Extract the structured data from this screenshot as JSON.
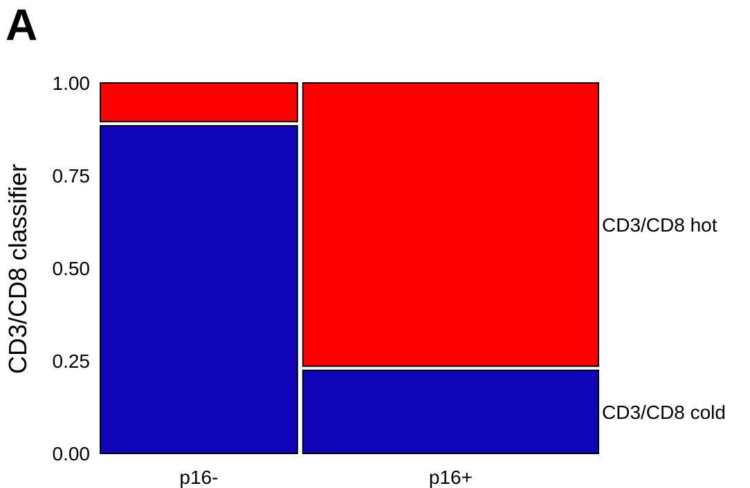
{
  "panel_label": "A",
  "chart_data": {
    "type": "mosaic",
    "title": "",
    "ylabel": "CD3/CD8 classifier",
    "xlabel": "",
    "ylim": [
      0,
      1
    ],
    "y_ticks": [
      "0.00",
      "0.25",
      "0.50",
      "0.75",
      "1.00"
    ],
    "y_tick_values": [
      0,
      0.25,
      0.5,
      0.75,
      1.0
    ],
    "categories": [
      "p16-",
      "p16+"
    ],
    "category_widths": [
      0.4,
      0.6
    ],
    "series": [
      {
        "name": "CD3/CD8 cold",
        "color": "#1105b8",
        "values": [
          0.89,
          0.23
        ]
      },
      {
        "name": "CD3/CD8 hot",
        "color": "#ff0000",
        "values": [
          0.11,
          0.77
        ]
      }
    ]
  }
}
